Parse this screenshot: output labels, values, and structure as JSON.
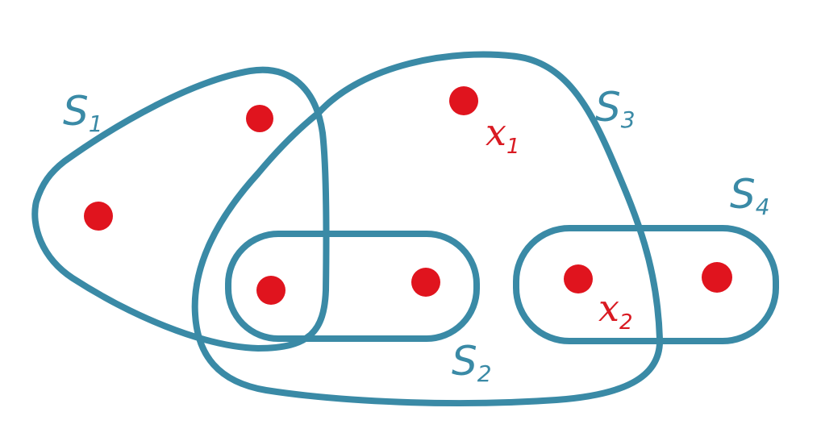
{
  "colors": {
    "set_stroke": "#3a8aa6",
    "point_fill": "#e0141e",
    "point_label": "#d91a22",
    "background": "#ffffff"
  },
  "sets": [
    {
      "id": "S1",
      "letter": "S",
      "subscript": "1"
    },
    {
      "id": "S2",
      "letter": "S",
      "subscript": "2"
    },
    {
      "id": "S3",
      "letter": "S",
      "subscript": "3"
    },
    {
      "id": "S4",
      "letter": "S",
      "subscript": "4"
    }
  ],
  "points": [
    {
      "id": "p1",
      "label": "",
      "subscript": ""
    },
    {
      "id": "p2",
      "label": "",
      "subscript": ""
    },
    {
      "id": "p3",
      "label": "",
      "subscript": ""
    },
    {
      "id": "p4",
      "label": "",
      "subscript": ""
    },
    {
      "id": "x1",
      "label": "x",
      "subscript": "1"
    },
    {
      "id": "x2",
      "label": "x",
      "subscript": "2"
    },
    {
      "id": "p7",
      "label": "",
      "subscript": ""
    }
  ]
}
